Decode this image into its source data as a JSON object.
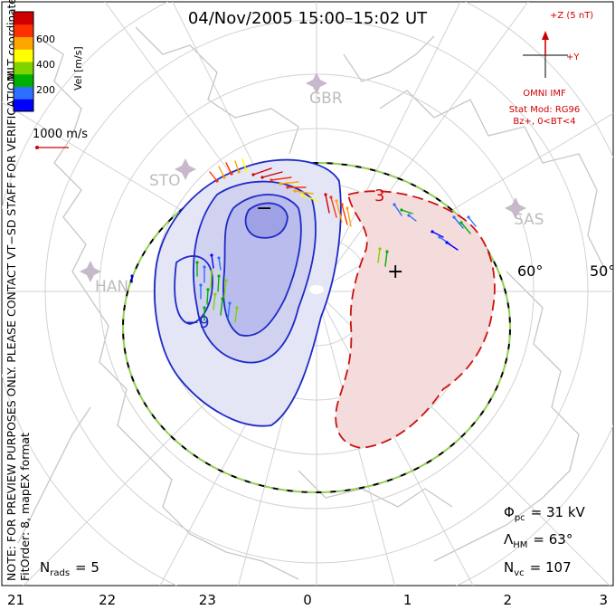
{
  "title": "04/Nov/2005 15:00–15:02 UT",
  "side_note": {
    "line1": "NOTE: FOR PREVIEW PURPOSES ONLY. PLEASE CONTACT VT−SD STAFF FOR VERIFICATION.",
    "line2": "FitOrder: 8, mapEX format",
    "line3": "MLT coordinates"
  },
  "colorbar": {
    "label": "Vel [m/s]",
    "ticks": [
      "600",
      "400",
      "200"
    ],
    "colors": [
      "#0000ff",
      "#2f6fff",
      "#00b000",
      "#7fd400",
      "#ffff00",
      "#ffa500",
      "#ff3000",
      "#d00000"
    ],
    "min": 0,
    "max": 800
  },
  "scale_vector": {
    "label": "1000 m/s"
  },
  "imf": {
    "z_label": "+Z (5 nT)",
    "y_label": "+Y",
    "omni": "OMNI IMF",
    "stat_mod": "Stat Mod: RG96",
    "condition": "Bz+, 0<BT<4"
  },
  "stations": [
    {
      "code": "GBR"
    },
    {
      "code": "STO"
    },
    {
      "code": "HAN"
    },
    {
      "code": "SAS"
    }
  ],
  "latitude_labels": [
    "60°",
    "50°"
  ],
  "mlt_labels": [
    "21",
    "22",
    "23",
    "0",
    "1",
    "2",
    "3"
  ],
  "contours": {
    "neg_label": "−9",
    "pos_label": "3",
    "min_marker": "−",
    "max_marker": "+"
  },
  "stats": {
    "phi_pc": {
      "symbol": "Φ",
      "sub": "pc",
      "value": "= 31 kV"
    },
    "lambda_hm": {
      "symbol": "Λ",
      "sub": "HM",
      "value": "= 63°"
    },
    "n_vc": {
      "symbol": "N",
      "sub": "vc",
      "value": "= 107"
    },
    "n_rads": {
      "symbol": "N",
      "sub": "rads",
      "value": "= 5"
    }
  }
}
